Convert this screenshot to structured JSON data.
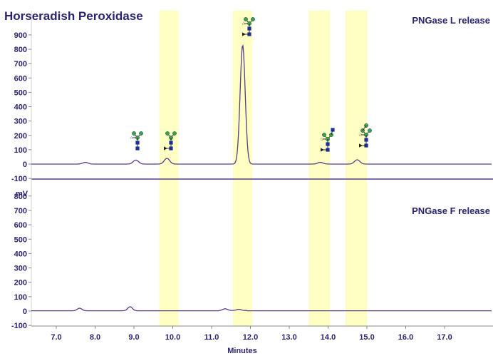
{
  "chart_data": [
    {
      "type": "line",
      "panel": "top",
      "title": "Horseradish Peroxidase",
      "series_label": "PNGase L release",
      "x_range": [
        6.4,
        17.8
      ],
      "ylim": [
        -100,
        950
      ],
      "y_ticks": [
        "900",
        "800",
        "700",
        "600",
        "500",
        "400",
        "300",
        "200",
        "100",
        "0",
        "-100"
      ],
      "peaks": [
        {
          "x": 7.75,
          "y": 12
        },
        {
          "x": 9.05,
          "y": 28
        },
        {
          "x": 9.85,
          "y": 40
        },
        {
          "x": 11.8,
          "y": 830
        },
        {
          "x": 13.8,
          "y": 12
        },
        {
          "x": 14.75,
          "y": 30
        }
      ]
    },
    {
      "type": "line",
      "panel": "bottom",
      "series_label": "PNGase F release",
      "y_unit": "mV",
      "x_range": [
        6.4,
        17.8
      ],
      "ylim": [
        -100,
        900
      ],
      "y_ticks": [
        "800",
        "700",
        "600",
        "500",
        "400",
        "300",
        "200",
        "100",
        "0",
        "-100"
      ],
      "peaks": [
        {
          "x": 7.6,
          "y": 18
        },
        {
          "x": 8.9,
          "y": 28
        },
        {
          "x": 11.35,
          "y": 12
        },
        {
          "x": 11.7,
          "y": 8
        }
      ]
    }
  ],
  "x_axis": {
    "label": "Minutes",
    "ticks": [
      "7.0",
      "8.0",
      "9.0",
      "10.0",
      "11.0",
      "12.0",
      "13.0",
      "14.0",
      "15.0",
      "16.0",
      "17.0"
    ]
  },
  "highlight_bands": [
    {
      "x0": 9.65,
      "x1": 10.15
    },
    {
      "x0": 11.55,
      "x1": 12.05
    },
    {
      "x0": 13.5,
      "x1": 14.05
    },
    {
      "x0": 14.45,
      "x1": 15.0
    }
  ],
  "colors": {
    "trace": "#5a3b8c",
    "text": "#2b2470",
    "band": "#ffffc4",
    "glycan_mannose": "#2fa84f",
    "glycan_glcnac": "#1a2ea0",
    "glycan_dark": "#222222"
  },
  "glycan_icons": [
    "glycan-structure-icon"
  ]
}
